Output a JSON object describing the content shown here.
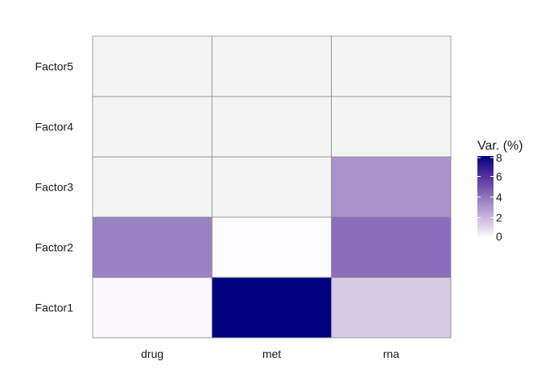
{
  "chart_data": {
    "type": "heatmap",
    "title": "",
    "xlabel": "",
    "ylabel": "",
    "x": [
      "drug",
      "met",
      "rna"
    ],
    "y": [
      "Factor1",
      "Factor2",
      "Factor3",
      "Factor4",
      "Factor5"
    ],
    "values": [
      [
        0.2,
        8.0,
        1.4
      ],
      [
        3.6,
        0.1,
        4.2
      ],
      [
        0.0,
        0.0,
        3.1
      ],
      [
        0.0,
        0.0,
        0.0
      ],
      [
        0.0,
        0.0,
        0.0
      ]
    ],
    "missing_color": "#f4f4f4",
    "color_low": "#ffffff",
    "color_high": "#000080",
    "legend": {
      "title": "Var. (%)",
      "position": "right",
      "range": [
        0,
        8
      ],
      "ticks": [
        "0",
        "2",
        "4",
        "6",
        "8"
      ]
    },
    "grid": false
  }
}
